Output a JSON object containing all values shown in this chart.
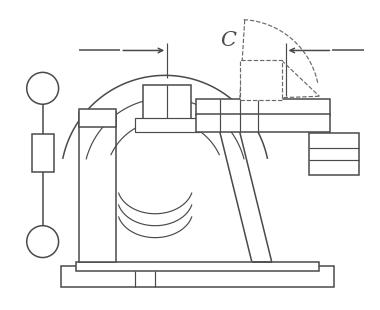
{
  "bg_color": "#ffffff",
  "lc": "#4a4a4a",
  "lc2": "#5a5a5a",
  "dc": "#6a6a6a",
  "figsize": [
    3.8,
    3.1
  ],
  "dpi": 100,
  "label_C": "C"
}
